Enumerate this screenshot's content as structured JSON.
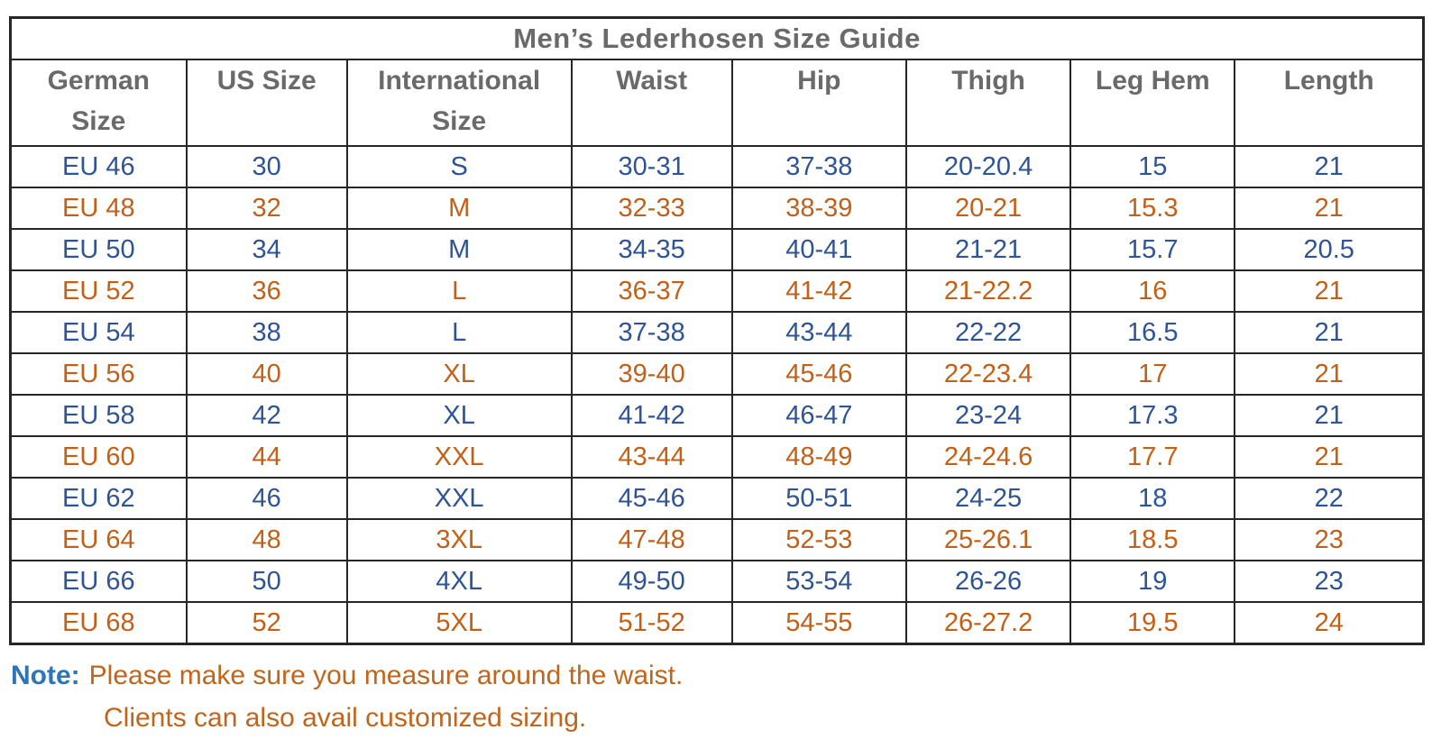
{
  "table": {
    "title": "Men’s Lederhosen Size Guide",
    "columns": [
      "German\nSize",
      "US Size",
      "International\nSize",
      "Waist",
      "Hip",
      "Thigh",
      "Leg Hem",
      "Length"
    ],
    "rows": [
      {
        "color": "blue",
        "values": [
          "EU 46",
          "30",
          "S",
          "30-31",
          "37-38",
          "20-20.4",
          "15",
          "21"
        ]
      },
      {
        "color": "orange",
        "values": [
          "EU 48",
          "32",
          "M",
          "32-33",
          "38-39",
          "20-21",
          "15.3",
          "21"
        ]
      },
      {
        "color": "blue",
        "values": [
          "EU 50",
          "34",
          "M",
          "34-35",
          "40-41",
          "21-21",
          "15.7",
          "20.5"
        ]
      },
      {
        "color": "orange",
        "values": [
          "EU 52",
          "36",
          "L",
          "36-37",
          "41-42",
          "21-22.2",
          "16",
          "21"
        ]
      },
      {
        "color": "blue",
        "values": [
          "EU 54",
          "38",
          "L",
          "37-38",
          "43-44",
          "22-22",
          "16.5",
          "21"
        ]
      },
      {
        "color": "orange",
        "values": [
          "EU 56",
          "40",
          "XL",
          "39-40",
          "45-46",
          "22-23.4",
          "17",
          "21"
        ]
      },
      {
        "color": "blue",
        "values": [
          "EU 58",
          "42",
          "XL",
          "41-42",
          "46-47",
          "23-24",
          "17.3",
          "21"
        ]
      },
      {
        "color": "orange",
        "values": [
          "EU 60",
          "44",
          "XXL",
          "43-44",
          "48-49",
          "24-24.6",
          "17.7",
          "21"
        ]
      },
      {
        "color": "blue",
        "values": [
          "EU 62",
          "46",
          "XXL",
          "45-46",
          "50-51",
          "24-25",
          "18",
          "22"
        ]
      },
      {
        "color": "orange",
        "values": [
          "EU 64",
          "48",
          "3XL",
          "47-48",
          "52-53",
          "25-26.1",
          "18.5",
          "23"
        ]
      },
      {
        "color": "blue",
        "values": [
          "EU 66",
          "50",
          "4XL",
          "49-50",
          "53-54",
          "26-26",
          "19",
          "23"
        ]
      },
      {
        "color": "orange",
        "values": [
          "EU 68",
          "52",
          "5XL",
          "51-52",
          "54-55",
          "26-27.2",
          "19.5",
          "24"
        ]
      }
    ]
  },
  "note": {
    "label": "Note:",
    "line1": "Please make sure you measure around the waist.",
    "line2": "Clients can also avail customized sizing."
  },
  "colors": {
    "row_blue": "#2e5496",
    "row_orange": "#c55f15",
    "header_text": "#6a6a6a",
    "note_label_blue": "#2e75b6",
    "note_text_orange": "#c0651c",
    "border": "#262626"
  }
}
